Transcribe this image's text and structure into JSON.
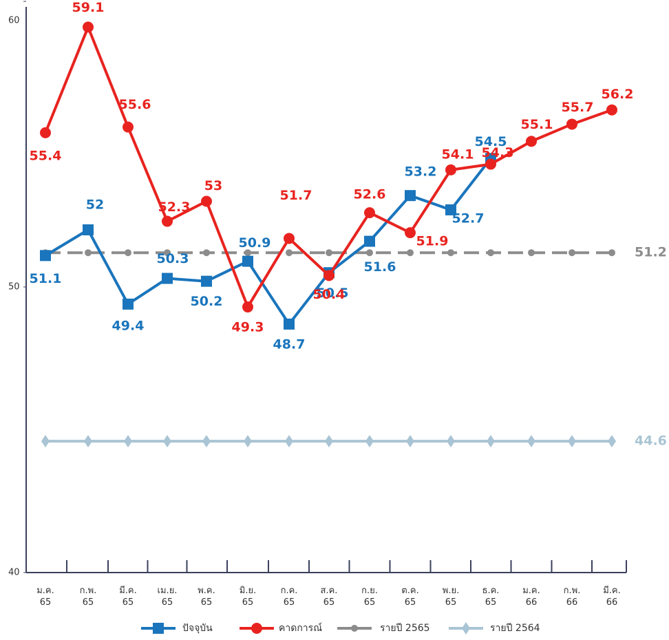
{
  "chart_data": {
    "type": "line",
    "categories": [
      "ม.ค. 65",
      "ก.พ. 65",
      "มี.ค. 65",
      "เม.ย. 65",
      "พ.ค. 65",
      "มิ.ย. 65",
      "ก.ค. 65",
      "ส.ค. 65",
      "ก.ย. 65",
      "ต.ค. 65",
      "พ.ย. 65",
      "ธ.ค. 65",
      "ม.ค. 66",
      "ก.พ. 66",
      "มี.ค. 66"
    ],
    "ylim": [
      40,
      60
    ],
    "yticks": [
      40,
      50,
      60
    ],
    "series": [
      {
        "name": "ปัจจุบัน",
        "color": "#1a75bc",
        "marker": "square",
        "values": [
          51.1,
          52.0,
          49.4,
          50.3,
          50.2,
          50.9,
          48.7,
          50.5,
          51.6,
          53.2,
          52.7,
          54.5,
          null,
          null,
          null
        ]
      },
      {
        "name": "คาดการณ์",
        "color": "#e8231f",
        "marker": "circle",
        "values": [
          55.4,
          59.1,
          55.6,
          52.3,
          53.0,
          49.3,
          51.7,
          50.4,
          52.6,
          51.9,
          54.1,
          54.3,
          55.1,
          55.7,
          56.2
        ]
      },
      {
        "name": "รายปี 2565",
        "color": "#8c8c8c",
        "marker": "dot",
        "dashed": true,
        "values": [
          51.2,
          51.2,
          51.2,
          51.2,
          51.2,
          51.2,
          51.2,
          51.2,
          51.2,
          51.2,
          51.2,
          51.2,
          51.2,
          51.2,
          51.2
        ]
      },
      {
        "name": "รายปี 2564",
        "color": "#a9c4d4",
        "marker": "diamond",
        "values": [
          44.6,
          44.6,
          44.6,
          44.6,
          44.6,
          44.6,
          44.6,
          44.6,
          44.6,
          44.6,
          44.6,
          44.6,
          44.6,
          44.6,
          44.6
        ]
      }
    ]
  }
}
